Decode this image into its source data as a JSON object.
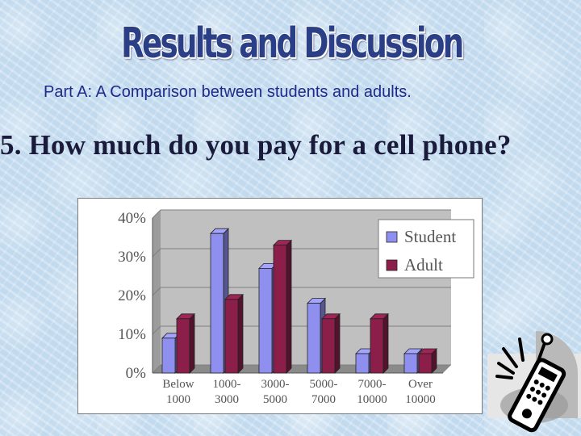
{
  "slide": {
    "title": "Results and Discussion",
    "subtitle": "Part A:  A Comparison between students and adults.",
    "question": "5. How much do you pay for a cell phone?"
  },
  "chart_data": {
    "type": "bar",
    "categories": [
      "Below 1000",
      "1000-3000",
      "3000-5000",
      "5000-7000",
      "7000-10000",
      "Over 10000"
    ],
    "category_lines": [
      [
        "Below",
        "1000"
      ],
      [
        "1000-",
        "3000"
      ],
      [
        "3000-",
        "5000"
      ],
      [
        "5000-",
        "7000"
      ],
      [
        "7000-",
        "10000"
      ],
      [
        "Over",
        "10000"
      ]
    ],
    "series": [
      {
        "name": "Student",
        "values": [
          9,
          36,
          27,
          18,
          5,
          5
        ],
        "color": "#8f8ff0"
      },
      {
        "name": "Adult",
        "values": [
          14,
          19,
          33,
          14,
          14,
          5
        ],
        "color": "#8b1f4a"
      }
    ],
    "ylim": [
      0,
      40
    ],
    "yticks": [
      "0%",
      "10%",
      "20%",
      "30%",
      "40%"
    ],
    "ytick_values": [
      0,
      10,
      20,
      30,
      40
    ],
    "grid": true,
    "legend_position": "top-right",
    "style": "3d-clustered"
  },
  "decor": {
    "icon": "remote-control-icon"
  }
}
